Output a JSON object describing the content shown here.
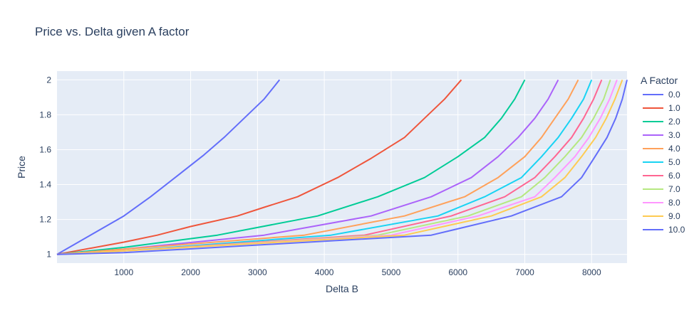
{
  "chart_data": {
    "type": "line",
    "title": "Price vs. Delta given A factor",
    "xlabel": "Delta B",
    "ylabel": "Price",
    "xlim": [
      0,
      8530
    ],
    "ylim": [
      0.95,
      2.05
    ],
    "xticks": [
      1000,
      2000,
      3000,
      4000,
      5000,
      6000,
      7000,
      8000
    ],
    "xtick_labels": [
      "1000",
      "2000",
      "3000",
      "4000",
      "5000",
      "6000",
      "7000",
      "8000"
    ],
    "yticks": [
      1,
      1.2,
      1.4,
      1.6,
      1.8,
      2
    ],
    "ytick_labels": [
      "1",
      "1.2",
      "1.4",
      "1.6",
      "1.8",
      "2"
    ],
    "grid": true,
    "legend": {
      "title": "A Factor",
      "position": "right"
    },
    "series": [
      {
        "name": "0.0",
        "color": "#636efa",
        "points": [
          [
            0,
            1.0
          ],
          [
            500,
            1.11
          ],
          [
            1000,
            1.22
          ],
          [
            1400,
            1.33
          ],
          [
            1800,
            1.45
          ],
          [
            2200,
            1.57
          ],
          [
            2500,
            1.67
          ],
          [
            2800,
            1.78
          ],
          [
            3100,
            1.89
          ],
          [
            3330,
            2.0
          ]
        ]
      },
      {
        "name": "1.0",
        "color": "#EF553B",
        "points": [
          [
            0,
            1.0
          ],
          [
            1000,
            1.07
          ],
          [
            1500,
            1.11
          ],
          [
            2000,
            1.16
          ],
          [
            2700,
            1.22
          ],
          [
            3100,
            1.27
          ],
          [
            3600,
            1.33
          ],
          [
            4200,
            1.44
          ],
          [
            4700,
            1.55
          ],
          [
            5200,
            1.67
          ],
          [
            5500,
            1.78
          ],
          [
            5800,
            1.89
          ],
          [
            6050,
            2.0
          ]
        ]
      },
      {
        "name": "2.0",
        "color": "#00cc96",
        "points": [
          [
            0,
            1.0
          ],
          [
            1000,
            1.04
          ],
          [
            2400,
            1.11
          ],
          [
            3900,
            1.22
          ],
          [
            4800,
            1.33
          ],
          [
            5500,
            1.44
          ],
          [
            6000,
            1.56
          ],
          [
            6400,
            1.67
          ],
          [
            6650,
            1.78
          ],
          [
            6850,
            1.89
          ],
          [
            7000,
            2.0
          ]
        ]
      },
      {
        "name": "3.0",
        "color": "#ab63fa",
        "points": [
          [
            0,
            1.0
          ],
          [
            1000,
            1.03
          ],
          [
            3100,
            1.11
          ],
          [
            4700,
            1.22
          ],
          [
            5600,
            1.33
          ],
          [
            6200,
            1.44
          ],
          [
            6600,
            1.56
          ],
          [
            6900,
            1.67
          ],
          [
            7150,
            1.78
          ],
          [
            7350,
            1.89
          ],
          [
            7500,
            2.0
          ]
        ]
      },
      {
        "name": "4.0",
        "color": "#FFA15A",
        "points": [
          [
            0,
            1.0
          ],
          [
            1000,
            1.03
          ],
          [
            3700,
            1.11
          ],
          [
            5200,
            1.22
          ],
          [
            6100,
            1.33
          ],
          [
            6600,
            1.44
          ],
          [
            7000,
            1.56
          ],
          [
            7250,
            1.67
          ],
          [
            7450,
            1.78
          ],
          [
            7650,
            1.89
          ],
          [
            7800,
            2.0
          ]
        ]
      },
      {
        "name": "5.0",
        "color": "#19d3f3",
        "points": [
          [
            0,
            1.0
          ],
          [
            1000,
            1.02
          ],
          [
            4100,
            1.11
          ],
          [
            5700,
            1.22
          ],
          [
            6400,
            1.33
          ],
          [
            6950,
            1.44
          ],
          [
            7250,
            1.56
          ],
          [
            7500,
            1.67
          ],
          [
            7700,
            1.78
          ],
          [
            7880,
            1.89
          ],
          [
            8000,
            2.0
          ]
        ]
      },
      {
        "name": "6.0",
        "color": "#FF6692",
        "points": [
          [
            0,
            1.0
          ],
          [
            1000,
            1.02
          ],
          [
            4600,
            1.11
          ],
          [
            5900,
            1.22
          ],
          [
            6700,
            1.33
          ],
          [
            7150,
            1.44
          ],
          [
            7450,
            1.56
          ],
          [
            7700,
            1.67
          ],
          [
            7880,
            1.78
          ],
          [
            8030,
            1.89
          ],
          [
            8150,
            2.0
          ]
        ]
      },
      {
        "name": "7.0",
        "color": "#B6E880",
        "points": [
          [
            0,
            1.0
          ],
          [
            1000,
            1.02
          ],
          [
            4800,
            1.11
          ],
          [
            6150,
            1.22
          ],
          [
            6950,
            1.33
          ],
          [
            7300,
            1.44
          ],
          [
            7600,
            1.56
          ],
          [
            7850,
            1.67
          ],
          [
            8030,
            1.78
          ],
          [
            8180,
            1.89
          ],
          [
            8280,
            2.0
          ]
        ]
      },
      {
        "name": "8.0",
        "color": "#FF97FF",
        "points": [
          [
            0,
            1.0
          ],
          [
            1000,
            1.02
          ],
          [
            5000,
            1.11
          ],
          [
            6300,
            1.22
          ],
          [
            7150,
            1.33
          ],
          [
            7450,
            1.44
          ],
          [
            7750,
            1.56
          ],
          [
            7960,
            1.67
          ],
          [
            8130,
            1.78
          ],
          [
            8270,
            1.89
          ],
          [
            8380,
            2.0
          ]
        ]
      },
      {
        "name": "9.0",
        "color": "#FECB52",
        "points": [
          [
            0,
            1.0
          ],
          [
            1000,
            1.02
          ],
          [
            5200,
            1.11
          ],
          [
            6500,
            1.22
          ],
          [
            7250,
            1.33
          ],
          [
            7600,
            1.44
          ],
          [
            7850,
            1.56
          ],
          [
            8060,
            1.67
          ],
          [
            8220,
            1.78
          ],
          [
            8350,
            1.89
          ],
          [
            8460,
            2.0
          ]
        ]
      },
      {
        "name": "10.0",
        "color": "#636efa",
        "points": [
          [
            0,
            1.0
          ],
          [
            1000,
            1.01
          ],
          [
            5600,
            1.11
          ],
          [
            6800,
            1.22
          ],
          [
            7550,
            1.33
          ],
          [
            7850,
            1.44
          ],
          [
            8050,
            1.56
          ],
          [
            8230,
            1.67
          ],
          [
            8360,
            1.78
          ],
          [
            8460,
            1.89
          ],
          [
            8530,
            2.0
          ]
        ]
      }
    ]
  }
}
